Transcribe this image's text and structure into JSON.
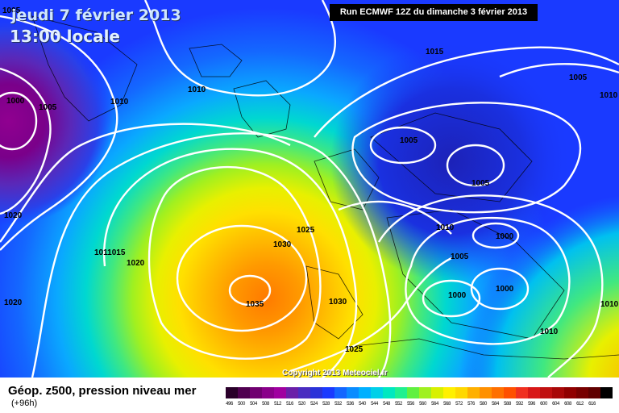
{
  "header": {
    "date_title": "jeudi 7 février 2013",
    "time_title": "13:00 locale",
    "run_info": "Run ECMWF 12Z du dimanche 3 février 2013"
  },
  "map": {
    "isobar_labels": [
      {
        "text": "1005",
        "region": "top-left corner"
      },
      {
        "text": "1000",
        "region": "left low"
      },
      {
        "text": "1005",
        "region": "left low"
      },
      {
        "text": "1010",
        "region": "greenland"
      },
      {
        "text": "1010",
        "region": "iceland"
      },
      {
        "text": "1015",
        "region": "north atlantic"
      },
      {
        "text": "1005",
        "region": "top-right"
      },
      {
        "text": "1010",
        "region": "right edge"
      },
      {
        "text": "1005",
        "region": "scandinavia"
      },
      {
        "text": "1005",
        "region": "baltic"
      },
      {
        "text": "1020",
        "region": "west atlantic"
      },
      {
        "text": "1025",
        "region": "british isles"
      },
      {
        "text": "1030",
        "region": "azores high"
      },
      {
        "text": "1010",
        "region": "north sea"
      },
      {
        "text": "1000",
        "region": "central europe"
      },
      {
        "text": "1005",
        "region": "central europe"
      },
      {
        "text": "1011015",
        "region": "mid atlantic"
      },
      {
        "text": "1020",
        "region": "mid atlantic"
      },
      {
        "text": "1000",
        "region": "central europe south"
      },
      {
        "text": "1000",
        "region": "mediterranean low"
      },
      {
        "text": "1035",
        "region": "azores high center"
      },
      {
        "text": "1030",
        "region": "biscay"
      },
      {
        "text": "1020",
        "region": "southwest edge"
      },
      {
        "text": "1025",
        "region": "iberia"
      },
      {
        "text": "1010",
        "region": "east"
      },
      {
        "text": "1010",
        "region": "east edge"
      }
    ],
    "copyright": "Copyright 2013 Meteociel.fr"
  },
  "legend": {
    "title": "Géop. z500, pression niveau mer",
    "subtitle": "(+96h)",
    "scale_colors": [
      "#2a002a",
      "#500050",
      "#700070",
      "#8a008a",
      "#a000a0",
      "#6a1fa8",
      "#4a2cc0",
      "#2a32d8",
      "#1a3aff",
      "#1466ff",
      "#0a8cff",
      "#00b0ff",
      "#00d0e8",
      "#00e8c0",
      "#20f090",
      "#60f040",
      "#a0f020",
      "#d8f000",
      "#fff000",
      "#ffd800",
      "#ffb000",
      "#ff9000",
      "#ff7000",
      "#ff5000",
      "#f03020",
      "#d81818",
      "#c01010",
      "#a80808",
      "#900000",
      "#780000",
      "#600000",
      "#000000"
    ],
    "scale_labels": [
      "496",
      "500",
      "504",
      "508",
      "512",
      "516",
      "520",
      "524",
      "528",
      "532",
      "536",
      "540",
      "544",
      "548",
      "552",
      "556",
      "560",
      "564",
      "568",
      "572",
      "576",
      "580",
      "584",
      "588",
      "592",
      "596",
      "600",
      "604",
      "608",
      "612",
      "616"
    ]
  }
}
